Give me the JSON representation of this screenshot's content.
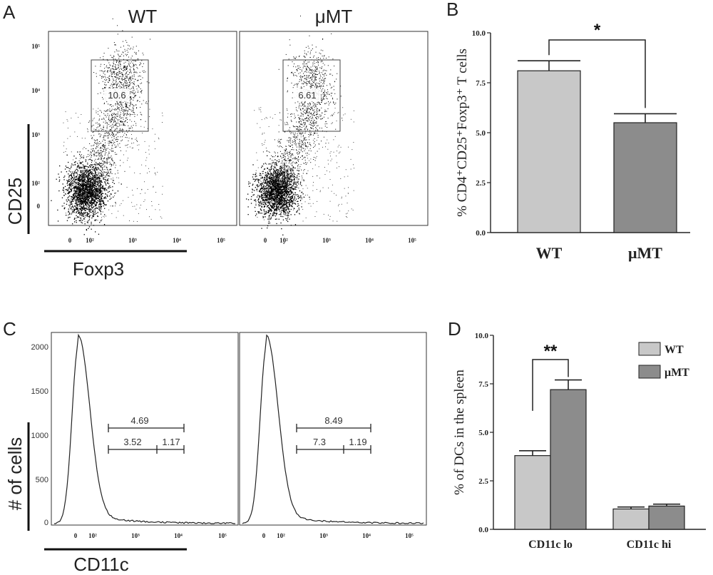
{
  "panel_a": {
    "letter": "A",
    "headers": [
      "WT",
      "μMT"
    ],
    "y_axis_label": "CD25",
    "x_axis_label": "Foxp3",
    "y_ticks": [
      "10⁵",
      "10⁴",
      "10³",
      "10²",
      "0"
    ],
    "x_ticks": [
      "0",
      "10²",
      "10³",
      "10⁴",
      "10⁵"
    ],
    "gate_values": [
      "10.6",
      "6.61"
    ]
  },
  "panel_c": {
    "letter": "C",
    "y_axis_label": "# of cells",
    "x_axis_label": "CD11c",
    "y_ticks": [
      "2000",
      "1500",
      "1000",
      "500",
      "0"
    ],
    "x_ticks": [
      "0",
      "10²",
      "10³",
      "10⁴",
      "10⁵"
    ],
    "gates": [
      {
        "total": "4.69",
        "left": "3.52",
        "right": "1.17"
      },
      {
        "total": "8.49",
        "left": "7.3",
        "right": "1.19"
      }
    ]
  },
  "panel_b": {
    "letter": "B"
  },
  "panel_d": {
    "letter": "D"
  },
  "chart_data": [
    {
      "type": "bar",
      "panel": "B",
      "categories": [
        "WT",
        "μMT"
      ],
      "values": [
        8.1,
        5.5
      ],
      "errors": [
        0.5,
        0.45
      ],
      "colors": [
        "#c8c8c8",
        "#8c8c8c"
      ],
      "ylabel": "% CD4⁺CD25⁺Foxp3⁺ T cells",
      "ylim": [
        0,
        10
      ],
      "y_ticks": [
        "0.0",
        "2.5",
        "5.0",
        "7.5",
        "10.0"
      ],
      "significance": "*"
    },
    {
      "type": "bar",
      "panel": "D",
      "categories": [
        "CD11c lo",
        "CD11c hi"
      ],
      "series": [
        {
          "name": "WT",
          "values": [
            3.8,
            1.05
          ],
          "errors": [
            0.25,
            0.1
          ],
          "color": "#c8c8c8"
        },
        {
          "name": "μMT",
          "values": [
            7.2,
            1.2
          ],
          "errors": [
            0.5,
            0.1
          ],
          "color": "#8c8c8c"
        }
      ],
      "ylabel": "% of DCs in the spleen",
      "ylim": [
        0,
        10
      ],
      "y_ticks": [
        "0.0",
        "2.5",
        "5.0",
        "7.5",
        "10.0"
      ],
      "legend_position": "top-right",
      "significance": "**"
    }
  ]
}
